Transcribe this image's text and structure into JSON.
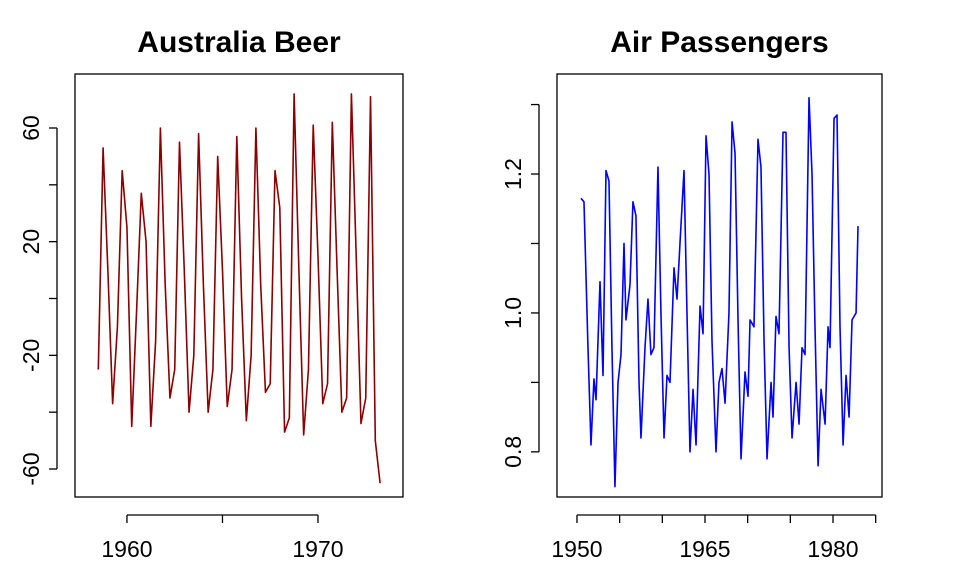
{
  "chart_data": [
    {
      "type": "line",
      "title": "Australia Beer",
      "color": "#8b0000",
      "x": [
        1958.5,
        1958.75,
        1959,
        1959.25,
        1959.5,
        1959.75,
        1960,
        1960.25,
        1960.5,
        1960.75,
        1961,
        1961.25,
        1961.5,
        1961.75,
        1962,
        1962.25,
        1962.5,
        1962.75,
        1963,
        1963.25,
        1963.5,
        1963.75,
        1964,
        1964.25,
        1964.5,
        1964.75,
        1965,
        1965.25,
        1965.5,
        1965.75,
        1966,
        1966.25,
        1966.5,
        1966.75,
        1967,
        1967.25,
        1967.5,
        1967.75,
        1968,
        1968.25,
        1968.5,
        1968.75,
        1969,
        1969.25,
        1969.5,
        1969.75,
        1970,
        1970.25,
        1970.5,
        1970.75,
        1971,
        1971.25,
        1971.5,
        1971.75,
        1972,
        1972.25,
        1972.5,
        1972.75,
        1973,
        1973.25
      ],
      "values": [
        -25,
        53,
        10,
        -37,
        -10,
        45,
        25,
        -45,
        -5,
        37,
        20,
        -45,
        -15,
        60,
        5,
        -35,
        -25,
        55,
        10,
        -40,
        -20,
        58,
        5,
        -40,
        -25,
        50,
        10,
        -38,
        -25,
        57,
        0,
        -43,
        -20,
        60,
        5,
        -33,
        -30,
        45,
        32,
        -47,
        -42,
        72,
        10,
        -48,
        -25,
        61,
        15,
        -37,
        -30,
        62,
        10,
        -40,
        -35,
        72,
        15,
        -44,
        -35,
        71,
        -50,
        -65
      ],
      "xlim": [
        1957.28,
        1974.45
      ],
      "ylim": [
        -69.85,
        79
      ],
      "xticks": [
        1960,
        {
          "value": 1965,
          "label": null
        },
        1970
      ],
      "yticks": [
        -60,
        {
          "value": -40,
          "label": null
        },
        -20,
        {
          "value": 0,
          "label": null
        },
        20,
        {
          "value": 40,
          "label": null
        },
        60
      ]
    },
    {
      "type": "line",
      "title": "Air Passengers",
      "color": "#0000ff",
      "x": [
        1950.47,
        1950.82,
        1951.29,
        1951.64,
        1951.99,
        1952.23,
        1952.7,
        1953.05,
        1953.4,
        1953.75,
        1954.1,
        1954.45,
        1954.81,
        1955.16,
        1955.51,
        1955.74,
        1956.21,
        1956.56,
        1956.91,
        1957.27,
        1957.5,
        1957.97,
        1958.32,
        1958.67,
        1959.02,
        1959.49,
        1959.84,
        1960.2,
        1960.55,
        1960.9,
        1961.37,
        1961.72,
        1962.07,
        1962.54,
        1962.89,
        1963.24,
        1963.6,
        1963.95,
        1964.42,
        1964.77,
        1965.12,
        1965.47,
        1965.82,
        1966.29,
        1966.64,
        1966.99,
        1967.35,
        1967.81,
        1968.17,
        1968.52,
        1968.87,
        1969.22,
        1969.69,
        1970.04,
        1970.28,
        1970.74,
        1971.21,
        1971.56,
        1971.92,
        1972.27,
        1972.74,
        1972.97,
        1973.32,
        1973.67,
        1974.14,
        1974.49,
        1974.85,
        1975.2,
        1975.67,
        1976.02,
        1976.37,
        1976.72,
        1977.19,
        1977.54,
        1977.89,
        1978.25,
        1978.6,
        1979.07,
        1979.42,
        1979.65,
        1980.12,
        1980.47,
        1980.82,
        1981.18,
        1981.53,
        1981.88,
        1982.23,
        1982.7,
        1982.93
      ],
      "values": [
        1.165,
        1.16,
        0.95,
        0.81,
        0.905,
        0.875,
        1.045,
        0.91,
        1.205,
        1.19,
        0.95,
        0.75,
        0.9,
        0.94,
        1.1,
        0.99,
        1.04,
        1.16,
        1.14,
        0.9,
        0.82,
        0.95,
        1.02,
        0.94,
        0.95,
        1.21,
        1.0,
        0.82,
        0.91,
        0.9,
        1.065,
        1.02,
        1.1,
        1.205,
        1.0,
        0.8,
        0.89,
        0.81,
        1.01,
        0.97,
        1.255,
        1.2,
        0.96,
        0.8,
        0.9,
        0.92,
        0.87,
        1.0,
        1.275,
        1.23,
        0.99,
        0.79,
        0.915,
        0.88,
        0.99,
        0.98,
        1.25,
        1.21,
        0.96,
        0.79,
        0.9,
        0.85,
        0.995,
        0.97,
        1.26,
        1.26,
        0.95,
        0.82,
        0.9,
        0.84,
        0.95,
        0.94,
        1.31,
        1.2,
        0.98,
        0.78,
        0.89,
        0.84,
        0.98,
        0.95,
        1.28,
        1.285,
        0.98,
        0.81,
        0.91,
        0.85,
        0.99,
        1.0,
        1.125
      ],
      "xlim": [
        1947.66,
        1985.74
      ],
      "ylim": [
        0.735,
        1.344
      ],
      "xticks": [
        1950,
        {
          "value": 1955,
          "label": null
        },
        {
          "value": 1960,
          "label": null
        },
        1965,
        {
          "value": 1970,
          "label": null
        },
        {
          "value": 1975,
          "label": null
        },
        1980,
        {
          "value": 1985,
          "label": null
        }
      ],
      "yticks": [
        0.8,
        {
          "value": 0.9,
          "label": null
        },
        {
          "value": 1.0,
          "label": "1.0"
        },
        {
          "value": 1.1,
          "label": null
        },
        1.2,
        {
          "value": 1.3,
          "label": null
        }
      ]
    }
  ]
}
